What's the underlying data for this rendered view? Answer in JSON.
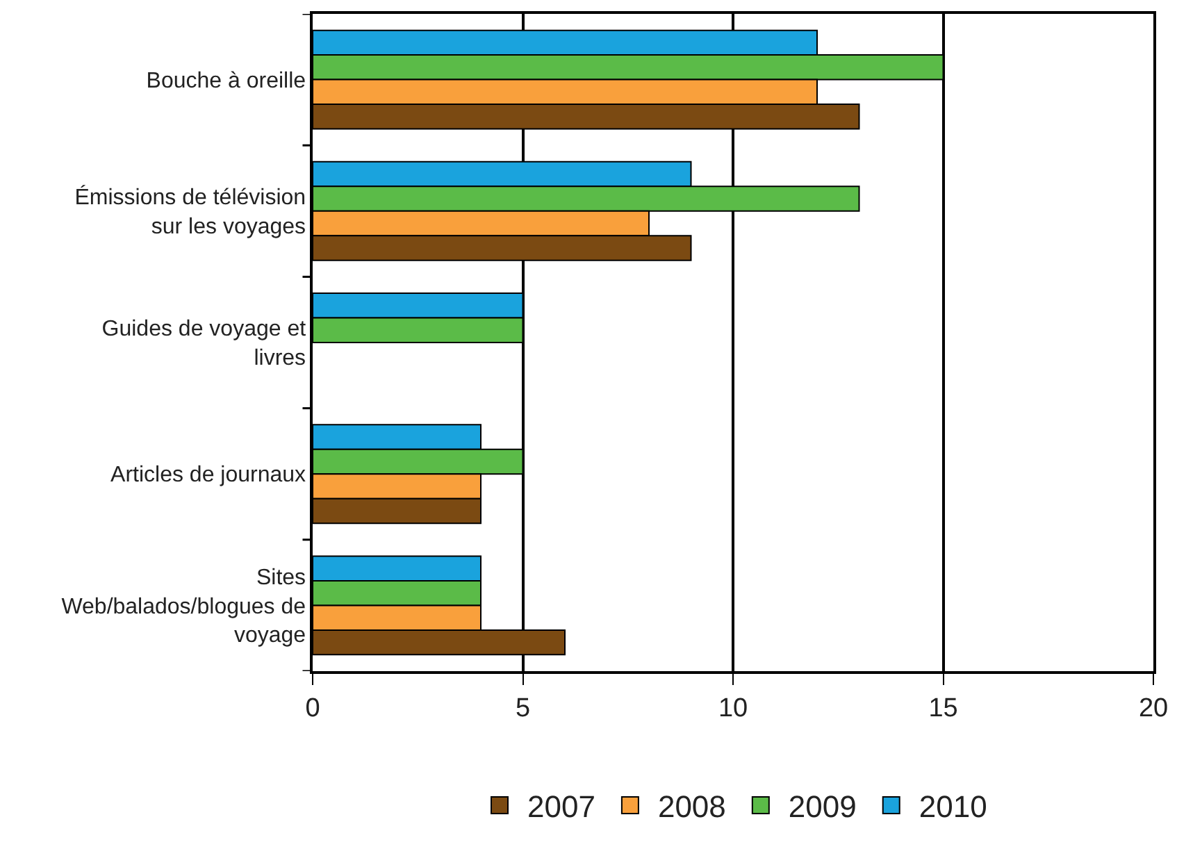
{
  "chart_data": {
    "type": "bar",
    "orientation": "horizontal",
    "categories": [
      "Bouche à oreille",
      "Émissions de télévision sur les voyages",
      "Guides de voyage et livres",
      "Articles de journaux",
      "Sites Web/balados/blogues de voyage"
    ],
    "series": [
      {
        "name": "2007",
        "color": "#7b4a12",
        "values": [
          13,
          9,
          null,
          4,
          6
        ]
      },
      {
        "name": "2008",
        "color": "#f9a03c",
        "values": [
          12,
          8,
          null,
          4,
          4
        ]
      },
      {
        "name": "2009",
        "color": "#5bbb48",
        "values": [
          15,
          13,
          5,
          5,
          4
        ]
      },
      {
        "name": "2010",
        "color": "#1aa3dd",
        "values": [
          12,
          9,
          5,
          4,
          4
        ]
      }
    ],
    "xlim": [
      0,
      20
    ],
    "xticks": [
      0,
      5,
      10,
      15,
      20
    ],
    "grid": "x",
    "legend": "bottom"
  }
}
